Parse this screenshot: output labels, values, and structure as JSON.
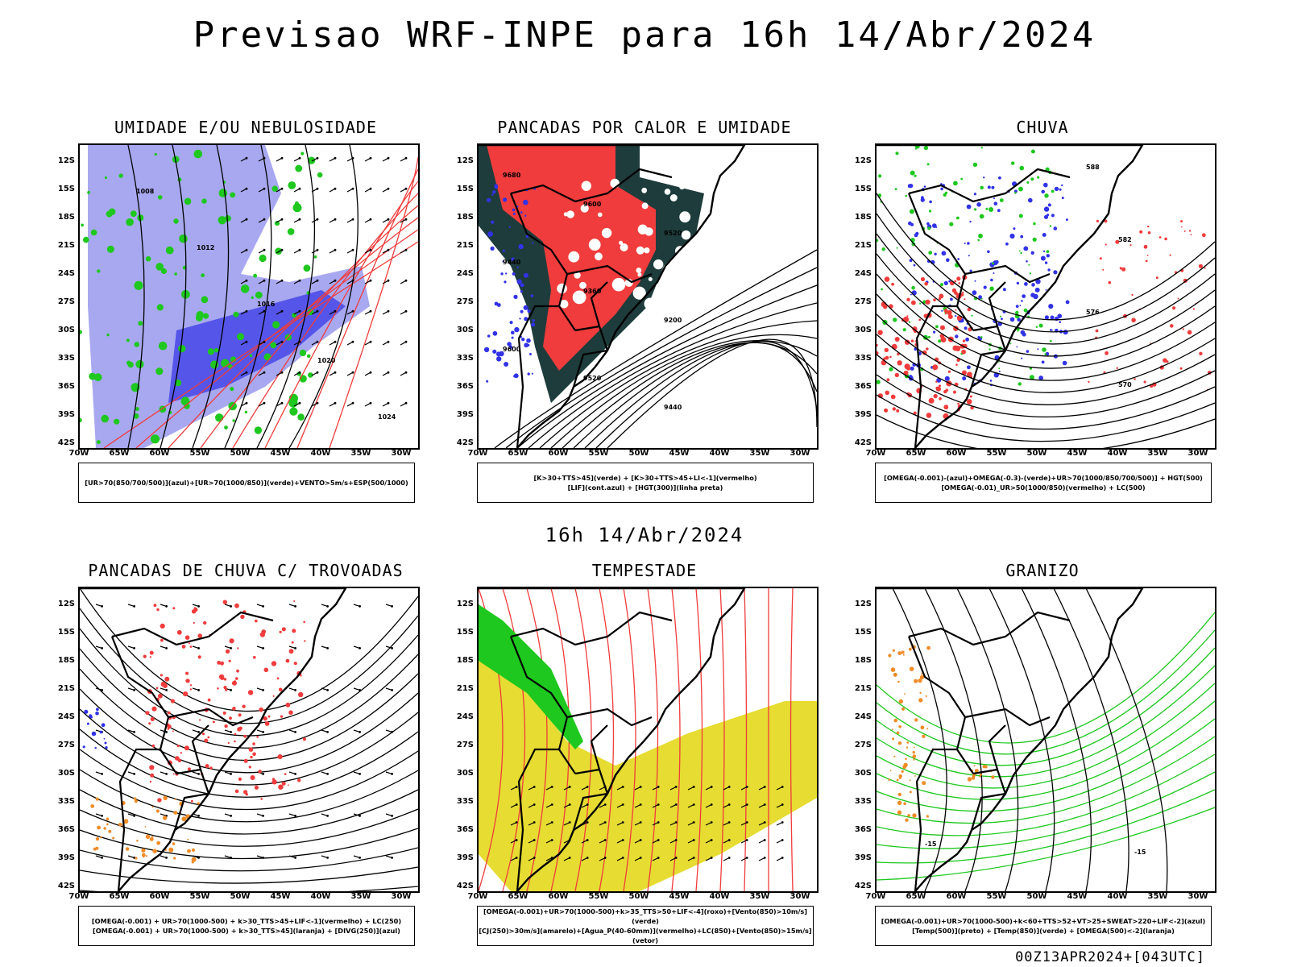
{
  "header": {
    "title": "Previsao WRF-INPE  para 16h 14/Abr/2024",
    "mid_title": "16h 14/Abr/2024",
    "footer": "00Z13APR2024+[043UTC]"
  },
  "axes": {
    "lat_labels": [
      "12S",
      "15S",
      "18S",
      "21S",
      "24S",
      "27S",
      "30S",
      "33S",
      "36S",
      "39S",
      "42S"
    ],
    "lon_labels": [
      "70W",
      "65W",
      "60W",
      "55W",
      "50W",
      "45W",
      "40W",
      "35W",
      "30W"
    ]
  },
  "colors": {
    "blue_fill": "#a8a8f0",
    "blue_dark": "#3232e6",
    "green": "#1ec81e",
    "red": "#f03c3c",
    "dark_teal": "#1e3c3c",
    "yellow": "#e6dc32",
    "orange": "#f08c28"
  },
  "panels": [
    {
      "title": "UMIDADE E/OU NEBULOSIDADE",
      "legend_lines": [
        "[UR>70(850/700/500)](azul)+[UR>70(1000/850)](verde)+VENTO>5m/s+ESP(500/1000)"
      ],
      "contour_labels": [
        "1008",
        "1012",
        "1016",
        "1020",
        "1024"
      ]
    },
    {
      "title": "PANCADAS POR CALOR E UMIDADE",
      "legend_lines": [
        "[K>30+TTS>45](verde)  +  [K>30+TTS>45+LI<-1](vermelho)",
        "[LIF](cont.azul)  +  [HGT(300)](linha preta)"
      ],
      "contour_labels": [
        "9680",
        "9600",
        "9520",
        "9440",
        "9360",
        "9200",
        "9600",
        "9520",
        "9440"
      ]
    },
    {
      "title": "CHUVA",
      "legend_lines": [
        "[OMEGA(-0.001)-(azul)+OMEGA(-0.3)-(verde)+UR>70(1000/850/700/500)]  +  HGT(500)",
        "[OMEGA(-0.01)_UR>50(1000/850)(vermelho)  +  LC(500)"
      ],
      "contour_labels": [
        "588",
        "582",
        "576",
        "570"
      ]
    },
    {
      "title": "PANCADAS DE CHUVA C/ TROVOADAS",
      "legend_lines": [
        "[OMEGA(-0.001)  +  UR>70(1000-500)  +  k>30_TTS>45+LIF<-1](vermelho)  +  LC(250)",
        "[OMEGA(-0.001)  +  UR>70(1000-500)  +  k>30_TTS>45](laranja)  +  [DIVG(250)](azul)"
      ],
      "contour_labels": []
    },
    {
      "title": "TEMPESTADE",
      "legend_lines": [
        "[OMEGA(-0.001)+UR>70(1000-500)+k>35_TTS>50+LIF<-4](roxo)+[Vento(850)>10m/s](verde)",
        "[CJ(250)>30m/s](amarelo)+[Agua_P(40-60mm)](vermelho)+LC(850)+[Vento(850)>15m/s](vetor)"
      ],
      "contour_labels": []
    },
    {
      "title": "GRANIZO",
      "legend_lines": [
        "[OMEGA(-0.001)+UR>70(1000-500)+k<60+TTS>52+VT>25+SWEAT>220+LIF<-2](azul)",
        "[Temp(500)](preto)  +  [Temp(850)](verde)  +  [OMEGA(500)<-2](laranja)"
      ],
      "contour_labels": [
        "-15",
        "-15"
      ]
    }
  ]
}
